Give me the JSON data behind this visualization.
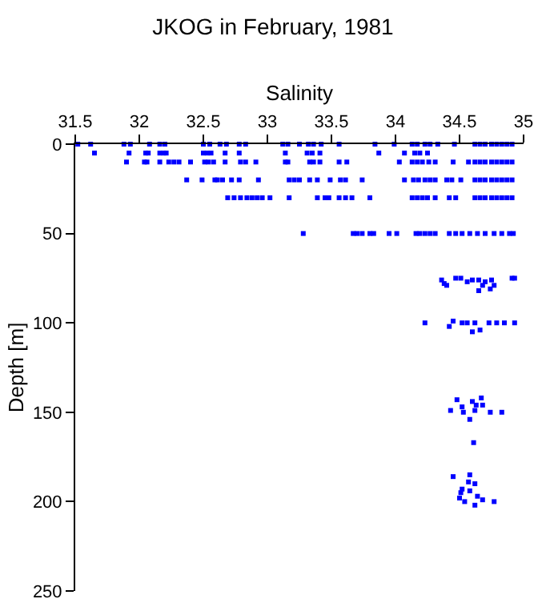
{
  "chart_data": {
    "type": "scatter",
    "title": "JKOG in February, 1981",
    "xlabel": "Salinity",
    "ylabel": "Depth [m]",
    "xlim": [
      31.5,
      35
    ],
    "xticks": [
      31.5,
      32,
      32.5,
      33,
      33.5,
      34,
      34.5,
      35
    ],
    "ylim": [
      250,
      0
    ],
    "yticks": [
      0,
      50,
      100,
      150,
      200,
      250
    ],
    "marker": "square",
    "series": [
      {
        "color": "#0000ff",
        "x": [
          31.52,
          31.62,
          31.88,
          31.93,
          32.08,
          32.16,
          32.2,
          32.5,
          32.55,
          32.63,
          32.68,
          32.78,
          32.83,
          33.12,
          33.16,
          33.25,
          33.32,
          33.36,
          33.42,
          33.56,
          33.84,
          33.99,
          34.13,
          34.17,
          34.23,
          34.27,
          34.33,
          34.46,
          34.62,
          34.66,
          34.7,
          34.75,
          34.79,
          34.83,
          34.87,
          34.91,
          31.65,
          31.92,
          32.05,
          32.07,
          32.16,
          32.19,
          32.21,
          32.5,
          32.53,
          32.56,
          32.67,
          32.78,
          33.14,
          33.31,
          33.35,
          33.41,
          33.87,
          34.07,
          34.15,
          34.19,
          34.25,
          31.9,
          32.04,
          32.06,
          32.16,
          32.23,
          32.27,
          32.31,
          32.4,
          32.51,
          32.54,
          32.58,
          32.67,
          32.79,
          32.83,
          32.91,
          33.14,
          33.16,
          33.33,
          33.36,
          33.41,
          33.56,
          33.62,
          34.03,
          34.13,
          34.17,
          34.21,
          34.26,
          34.31,
          34.45,
          34.57,
          34.62,
          34.66,
          34.7,
          34.75,
          34.79,
          34.83,
          34.87,
          34.91,
          32.37,
          32.49,
          32.59,
          32.61,
          32.65,
          32.72,
          32.78,
          32.93,
          33.17,
          33.21,
          33.25,
          33.33,
          33.39,
          33.49,
          33.57,
          33.61,
          33.74,
          34.07,
          34.14,
          34.18,
          34.23,
          34.27,
          34.31,
          34.4,
          34.44,
          34.51,
          34.62,
          34.66,
          34.7,
          34.75,
          34.79,
          34.83,
          34.87,
          34.91,
          32.69,
          32.74,
          32.79,
          32.84,
          32.88,
          32.92,
          32.96,
          33.02,
          33.17,
          33.39,
          33.45,
          33.48,
          33.56,
          33.61,
          33.66,
          33.8,
          34.13,
          34.17,
          34.21,
          34.25,
          34.31,
          34.42,
          34.47,
          34.62,
          34.66,
          34.7,
          34.75,
          34.79,
          34.83,
          34.87,
          34.91,
          33.28,
          33.67,
          33.7,
          33.74,
          33.8,
          33.83,
          33.95,
          34.01,
          34.16,
          34.19,
          34.23,
          34.27,
          34.31,
          34.42,
          34.47,
          34.52,
          34.58,
          34.64,
          34.7,
          34.77,
          34.83,
          34.89,
          34.92,
          34.36,
          34.38,
          34.4,
          34.47,
          34.51,
          34.56,
          34.6,
          34.65,
          34.68,
          34.7,
          34.75,
          34.77,
          34.65,
          34.74,
          34.91,
          34.93,
          34.23,
          34.42,
          34.45,
          34.52,
          34.6,
          34.66,
          34.62,
          34.73,
          34.79,
          34.85,
          34.93,
          34.56,
          34.48,
          34.43,
          34.52,
          34.53,
          34.6,
          34.63,
          34.67,
          34.68,
          34.58,
          34.62,
          34.74,
          34.83,
          34.61,
          34.45,
          34.58,
          34.57,
          34.62,
          34.52,
          34.51,
          34.58,
          34.5,
          34.54,
          34.64,
          34.68,
          34.62,
          34.77
        ],
        "values": [
          0,
          0,
          0,
          0,
          0,
          0,
          0,
          0,
          0,
          0,
          0,
          0,
          0,
          0,
          0,
          0,
          0,
          0,
          0,
          0,
          0,
          0,
          0,
          0,
          0,
          0,
          0,
          0,
          0,
          0,
          0,
          0,
          0,
          0,
          0,
          0,
          5,
          5,
          5,
          5,
          5,
          5,
          5,
          5,
          5,
          5,
          5,
          5,
          5,
          5,
          5,
          5,
          5,
          5,
          5,
          5,
          5,
          10,
          10,
          10,
          10,
          10,
          10,
          10,
          10,
          10,
          10,
          10,
          10,
          10,
          10,
          10,
          10,
          10,
          10,
          10,
          10,
          10,
          10,
          10,
          10,
          10,
          10,
          10,
          10,
          10,
          10,
          10,
          10,
          10,
          10,
          10,
          10,
          10,
          10,
          20,
          20,
          20,
          20,
          20,
          20,
          20,
          20,
          20,
          20,
          20,
          20,
          20,
          20,
          20,
          20,
          20,
          20,
          20,
          20,
          20,
          20,
          20,
          20,
          20,
          20,
          20,
          20,
          20,
          20,
          20,
          20,
          20,
          20,
          30,
          30,
          30,
          30,
          30,
          30,
          30,
          30,
          30,
          30,
          30,
          30,
          30,
          30,
          30,
          30,
          30,
          30,
          30,
          30,
          30,
          30,
          30,
          30,
          30,
          30,
          30,
          30,
          30,
          30,
          30,
          50,
          50,
          50,
          50,
          50,
          50,
          50,
          50,
          50,
          50,
          50,
          50,
          50,
          50,
          50,
          50,
          50,
          50,
          50,
          50,
          50,
          50,
          50,
          76,
          78,
          79,
          75,
          75,
          77,
          76,
          76,
          79,
          77,
          76,
          79,
          82,
          81,
          75,
          75,
          100,
          102,
          99,
          100,
          105,
          104,
          100,
          100,
          100,
          100,
          100,
          100,
          143,
          149,
          147,
          150,
          144,
          146,
          142,
          146,
          154,
          149,
          150,
          150,
          167,
          186,
          185,
          189,
          190,
          193,
          195,
          194,
          198,
          200,
          197,
          199,
          202,
          200
        ]
      }
    ]
  }
}
